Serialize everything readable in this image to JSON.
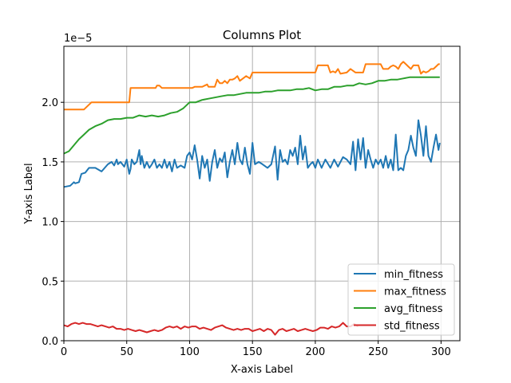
{
  "chart_data": {
    "type": "line",
    "title": "Columns Plot",
    "xlabel": "X-axis Label",
    "ylabel": "Y-axis Label",
    "y_scale_label": "1e−5",
    "xlim": [
      0,
      315
    ],
    "ylim": [
      0,
      2.47
    ],
    "x_ticks": [
      0,
      50,
      100,
      150,
      200,
      250,
      300
    ],
    "x_tick_labels": [
      "0",
      "50",
      "100",
      "150",
      "200",
      "250",
      "300"
    ],
    "y_ticks": [
      0,
      0.5,
      1.0,
      1.5,
      2.0
    ],
    "y_tick_labels": [
      "0.0",
      "0.5",
      "1.0",
      "1.5",
      "2.0"
    ],
    "grid": true,
    "legend_position": "lower-right",
    "series": [
      {
        "name": "min_fitness",
        "color": "#1f77b4",
        "x": [
          0,
          5,
          8,
          9,
          12,
          14,
          17,
          20,
          25,
          30,
          35,
          38,
          40,
          42,
          43,
          45,
          48,
          50,
          52,
          53,
          54,
          56,
          58,
          60,
          61,
          62,
          64,
          66,
          68,
          70,
          72,
          74,
          76,
          78,
          80,
          82,
          84,
          86,
          88,
          90,
          93,
          96,
          98,
          100,
          102,
          104,
          106,
          108,
          110,
          112,
          114,
          116,
          118,
          120,
          122,
          124,
          126,
          128,
          130,
          132,
          134,
          136,
          138,
          140,
          142,
          144,
          146,
          148,
          150,
          152,
          155,
          158,
          162,
          165,
          168,
          170,
          172,
          174,
          176,
          178,
          180,
          182,
          184,
          186,
          188,
          190,
          192,
          194,
          196,
          198,
          200,
          202,
          205,
          208,
          212,
          215,
          218,
          222,
          225,
          228,
          230,
          232,
          234,
          236,
          238,
          240,
          242,
          244,
          246,
          248,
          250,
          252,
          254,
          256,
          258,
          260,
          262,
          264,
          266,
          268,
          270,
          272,
          274,
          276,
          278,
          280,
          282,
          284,
          286,
          288,
          290,
          292,
          294,
          296,
          298,
          299
        ],
        "values": [
          1.29,
          1.3,
          1.33,
          1.32,
          1.33,
          1.4,
          1.41,
          1.45,
          1.45,
          1.42,
          1.48,
          1.5,
          1.47,
          1.52,
          1.48,
          1.5,
          1.46,
          1.52,
          1.4,
          1.44,
          1.52,
          1.48,
          1.5,
          1.6,
          1.48,
          1.55,
          1.45,
          1.5,
          1.45,
          1.48,
          1.52,
          1.45,
          1.48,
          1.45,
          1.52,
          1.45,
          1.5,
          1.42,
          1.52,
          1.45,
          1.47,
          1.45,
          1.55,
          1.58,
          1.52,
          1.64,
          1.52,
          1.36,
          1.55,
          1.45,
          1.52,
          1.34,
          1.5,
          1.6,
          1.45,
          1.53,
          1.5,
          1.58,
          1.37,
          1.5,
          1.6,
          1.48,
          1.66,
          1.52,
          1.48,
          1.62,
          1.48,
          1.4,
          1.66,
          1.48,
          1.5,
          1.48,
          1.45,
          1.48,
          1.63,
          1.35,
          1.6,
          1.5,
          1.52,
          1.48,
          1.6,
          1.55,
          1.62,
          1.48,
          1.72,
          1.52,
          1.63,
          1.45,
          1.48,
          1.5,
          1.45,
          1.52,
          1.45,
          1.52,
          1.45,
          1.52,
          1.46,
          1.54,
          1.52,
          1.48,
          1.67,
          1.43,
          1.69,
          1.52,
          1.7,
          1.45,
          1.6,
          1.52,
          1.45,
          1.52,
          1.48,
          1.52,
          1.45,
          1.55,
          1.45,
          1.52,
          1.43,
          1.73,
          1.43,
          1.45,
          1.43,
          1.55,
          1.6,
          1.72,
          1.62,
          1.55,
          1.85,
          1.72,
          1.55,
          1.8,
          1.55,
          1.5,
          1.62,
          1.73,
          1.6,
          1.66
        ],
        "stroke_width": 2
      },
      {
        "name": "max_fitness",
        "color": "#ff7f0e",
        "x": [
          0,
          16,
          18,
          22,
          24,
          30,
          40,
          52,
          53,
          54,
          60,
          65,
          70,
          73,
          74,
          76,
          78,
          80,
          90,
          100,
          102,
          104,
          110,
          114,
          115,
          120,
          122,
          124,
          126,
          128,
          130,
          132,
          134,
          136,
          138,
          140,
          145,
          148,
          150,
          155,
          160,
          165,
          170,
          175,
          180,
          185,
          190,
          195,
          200,
          202,
          205,
          210,
          212,
          214,
          216,
          218,
          220,
          225,
          228,
          232,
          235,
          238,
          240,
          244,
          246,
          248,
          250,
          252,
          254,
          256,
          258,
          260,
          262,
          264,
          266,
          268,
          270,
          272,
          274,
          276,
          278,
          280,
          282,
          284,
          286,
          288,
          290,
          292,
          294,
          296,
          298,
          299
        ],
        "values": [
          1.94,
          1.94,
          1.96,
          2.0,
          2.0,
          2.0,
          2.0,
          2.0,
          2.12,
          2.12,
          2.12,
          2.12,
          2.12,
          2.12,
          2.14,
          2.14,
          2.12,
          2.12,
          2.12,
          2.12,
          2.12,
          2.13,
          2.13,
          2.15,
          2.13,
          2.13,
          2.19,
          2.16,
          2.16,
          2.18,
          2.16,
          2.19,
          2.19,
          2.2,
          2.22,
          2.18,
          2.22,
          2.2,
          2.25,
          2.25,
          2.25,
          2.25,
          2.25,
          2.25,
          2.25,
          2.25,
          2.25,
          2.25,
          2.25,
          2.31,
          2.31,
          2.31,
          2.25,
          2.26,
          2.25,
          2.28,
          2.24,
          2.25,
          2.28,
          2.25,
          2.25,
          2.25,
          2.32,
          2.32,
          2.32,
          2.32,
          2.32,
          2.32,
          2.28,
          2.28,
          2.28,
          2.3,
          2.31,
          2.3,
          2.28,
          2.32,
          2.34,
          2.32,
          2.3,
          2.28,
          2.31,
          2.31,
          2.31,
          2.24,
          2.26,
          2.25,
          2.26,
          2.28,
          2.28,
          2.3,
          2.32,
          2.32
        ],
        "stroke_width": 2
      },
      {
        "name": "avg_fitness",
        "color": "#2ca02c",
        "x": [
          0,
          4,
          8,
          12,
          16,
          20,
          25,
          30,
          35,
          40,
          45,
          50,
          55,
          60,
          65,
          70,
          75,
          80,
          85,
          90,
          95,
          100,
          105,
          110,
          115,
          120,
          125,
          130,
          135,
          140,
          145,
          150,
          155,
          160,
          165,
          170,
          175,
          180,
          185,
          190,
          195,
          200,
          205,
          210,
          215,
          220,
          225,
          230,
          235,
          240,
          245,
          250,
          255,
          260,
          265,
          270,
          275,
          280,
          285,
          290,
          295,
          299
        ],
        "values": [
          1.57,
          1.59,
          1.64,
          1.69,
          1.73,
          1.77,
          1.8,
          1.82,
          1.85,
          1.86,
          1.86,
          1.87,
          1.87,
          1.89,
          1.88,
          1.89,
          1.88,
          1.89,
          1.91,
          1.92,
          1.95,
          2.0,
          2.0,
          2.02,
          2.03,
          2.04,
          2.05,
          2.06,
          2.06,
          2.07,
          2.08,
          2.08,
          2.08,
          2.09,
          2.09,
          2.1,
          2.1,
          2.1,
          2.11,
          2.11,
          2.12,
          2.1,
          2.11,
          2.11,
          2.13,
          2.13,
          2.14,
          2.14,
          2.16,
          2.15,
          2.16,
          2.18,
          2.18,
          2.19,
          2.19,
          2.2,
          2.21,
          2.21,
          2.21,
          2.21,
          2.21,
          2.21
        ],
        "stroke_width": 2
      },
      {
        "name": "std_fitness",
        "color": "#d62728",
        "x": [
          0,
          3,
          6,
          9,
          12,
          15,
          18,
          21,
          24,
          27,
          30,
          33,
          36,
          39,
          42,
          45,
          48,
          51,
          54,
          57,
          60,
          63,
          66,
          69,
          72,
          75,
          78,
          81,
          84,
          87,
          90,
          93,
          96,
          99,
          102,
          105,
          108,
          111,
          114,
          117,
          120,
          123,
          126,
          129,
          132,
          135,
          138,
          141,
          144,
          147,
          150,
          153,
          156,
          159,
          162,
          165,
          168,
          171,
          174,
          177,
          180,
          183,
          186,
          189,
          192,
          195,
          198,
          201,
          204,
          207,
          210,
          213,
          216,
          219,
          222,
          225,
          228,
          231,
          234
        ],
        "values": [
          0.13,
          0.12,
          0.14,
          0.15,
          0.14,
          0.15,
          0.14,
          0.14,
          0.13,
          0.12,
          0.13,
          0.12,
          0.11,
          0.12,
          0.1,
          0.1,
          0.09,
          0.1,
          0.09,
          0.08,
          0.09,
          0.08,
          0.07,
          0.08,
          0.09,
          0.08,
          0.09,
          0.11,
          0.12,
          0.11,
          0.12,
          0.1,
          0.12,
          0.11,
          0.12,
          0.12,
          0.1,
          0.11,
          0.1,
          0.09,
          0.11,
          0.12,
          0.13,
          0.11,
          0.1,
          0.09,
          0.1,
          0.09,
          0.1,
          0.1,
          0.08,
          0.09,
          0.1,
          0.08,
          0.1,
          0.09,
          0.05,
          0.09,
          0.1,
          0.08,
          0.09,
          0.1,
          0.08,
          0.09,
          0.1,
          0.09,
          0.08,
          0.09,
          0.11,
          0.11,
          0.1,
          0.12,
          0.11,
          0.12,
          0.15,
          0.12,
          0.12,
          0.14,
          0.12
        ],
        "stroke_width": 2
      }
    ]
  }
}
